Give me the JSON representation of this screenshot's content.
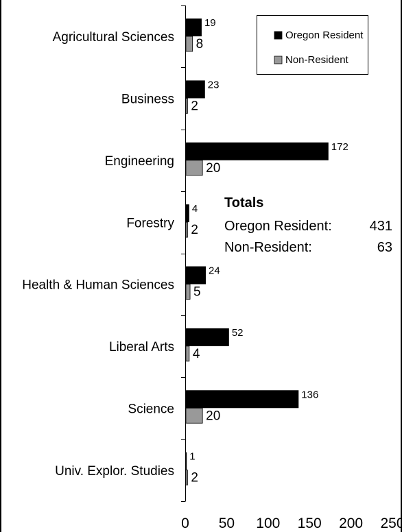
{
  "chart_data": {
    "type": "bar",
    "orientation": "horizontal",
    "categories": [
      "Agricultural Sciences",
      "Business",
      "Engineering",
      "Forestry",
      "Health & Human Sciences",
      "Liberal Arts",
      "Science",
      "Univ. Explor. Studies"
    ],
    "series": [
      {
        "name": "Oregon Resident",
        "color": "#000000",
        "values": [
          19,
          23,
          172,
          4,
          24,
          52,
          136,
          1
        ]
      },
      {
        "name": "Non-Resident",
        "color": "#999999",
        "values": [
          8,
          2,
          20,
          2,
          5,
          4,
          20,
          2
        ]
      }
    ],
    "xlim": [
      0,
      250
    ],
    "x_ticks": [
      0,
      50,
      100,
      150,
      200,
      250
    ],
    "legend": {
      "position": "top-right",
      "items": [
        "Oregon Resident",
        "Non-Resident"
      ]
    },
    "totals": {
      "title": "Totals",
      "items": [
        {
          "label": "Oregon Resident:",
          "value": "431"
        },
        {
          "label": "Non-Resident:",
          "value": "63"
        }
      ]
    },
    "grid": false
  }
}
